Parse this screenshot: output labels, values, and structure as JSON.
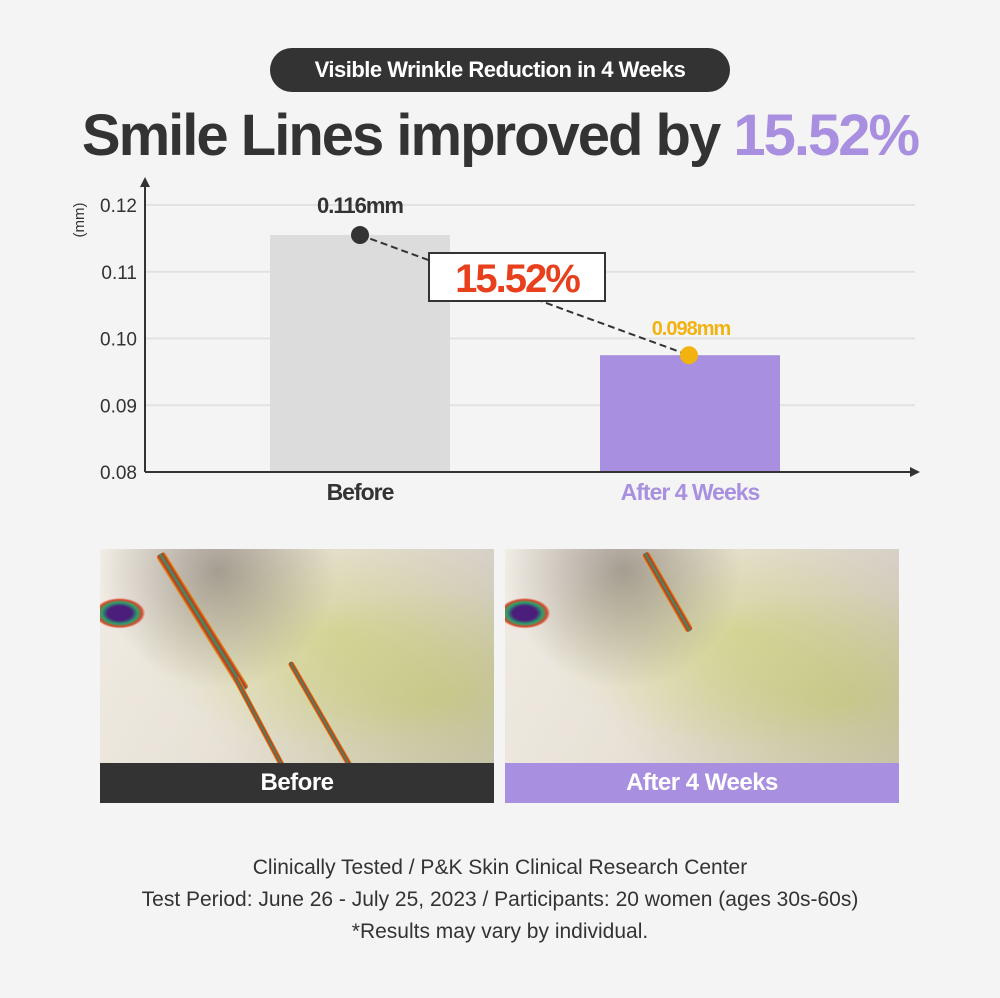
{
  "badge": "Visible Wrinkle Reduction in 4 Weeks",
  "headline": {
    "text": "Smile Lines improved by",
    "value": "15.52%"
  },
  "chart_data": {
    "type": "bar",
    "title": "Smile Lines improved by 15.52%",
    "ylabel": "(mm)",
    "xlabel": "",
    "ylim": [
      0.08,
      0.12
    ],
    "yticks": [
      "0.08",
      "0.09",
      "0.10",
      "0.11",
      "0.12"
    ],
    "categories": [
      "Before",
      "After 4 Weeks"
    ],
    "values": [
      0.116,
      0.098
    ],
    "data_labels": [
      "0.116mm",
      "0.098mm"
    ],
    "annotation": "15.52%",
    "grid": true,
    "colors": {
      "before_bar": "#dcdcdc",
      "after_bar": "#a98fe0",
      "before_point": "#333333",
      "after_point": "#f2b311",
      "annotation": "#e8401c"
    }
  },
  "photos": [
    {
      "label": "Before",
      "caption_color": "#333333"
    },
    {
      "label": "After 4 Weeks",
      "caption_color": "#a98fe0"
    }
  ],
  "footer": [
    "Clinically Tested / P&K Skin Clinical Research Center",
    "Test Period: June 26 - July 25, 2023 / Participants: 20 women (ages 30s-60s)",
    "*Results may vary by individual."
  ]
}
